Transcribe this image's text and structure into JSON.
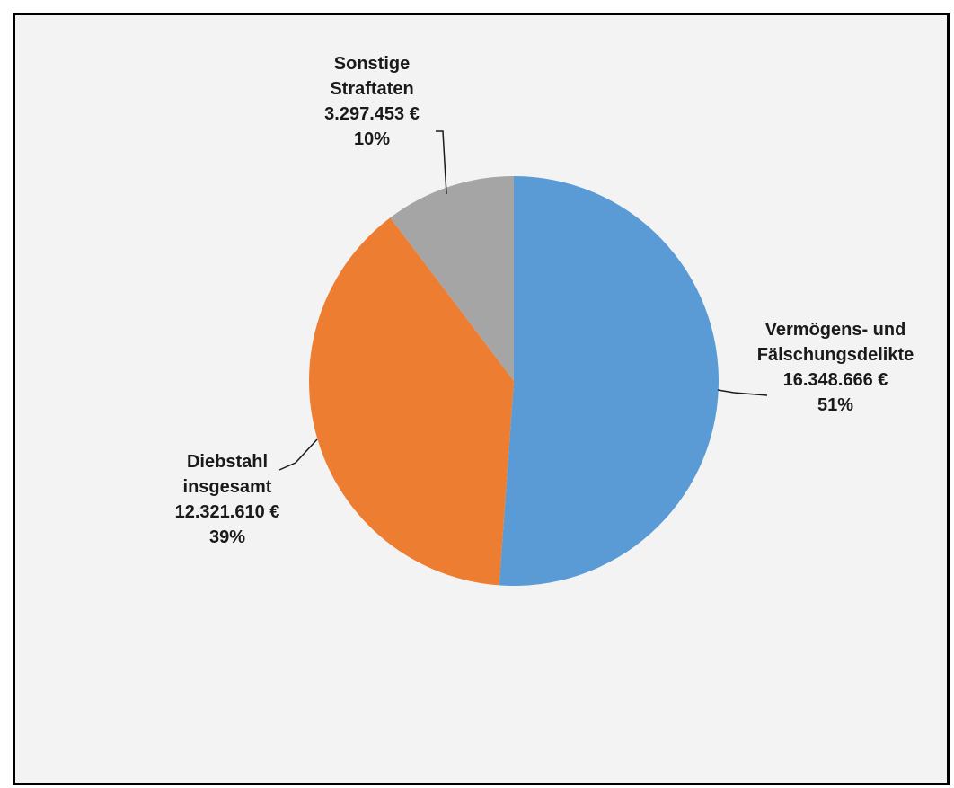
{
  "chart_data": {
    "type": "pie",
    "title": "",
    "start_angle_deg": 0,
    "direction": "clockwise",
    "slices": [
      {
        "label_lines": [
          "Vermögens- und",
          "Fälschungsdelikte"
        ],
        "value": 16348666,
        "value_label": "16.348.666 €",
        "percent_label": "51%",
        "color": "#5b9bd5"
      },
      {
        "label_lines": [
          "Diebstahl",
          "insgesamt"
        ],
        "value": 12321610,
        "value_label": "12.321.610 €",
        "percent_label": "39%",
        "color": "#ed7d31"
      },
      {
        "label_lines": [
          "Sonstige",
          "Straftaten"
        ],
        "value": 3297453,
        "value_label": "3.297.453 €",
        "percent_label": "10%",
        "color": "#a5a5a5"
      }
    ]
  }
}
